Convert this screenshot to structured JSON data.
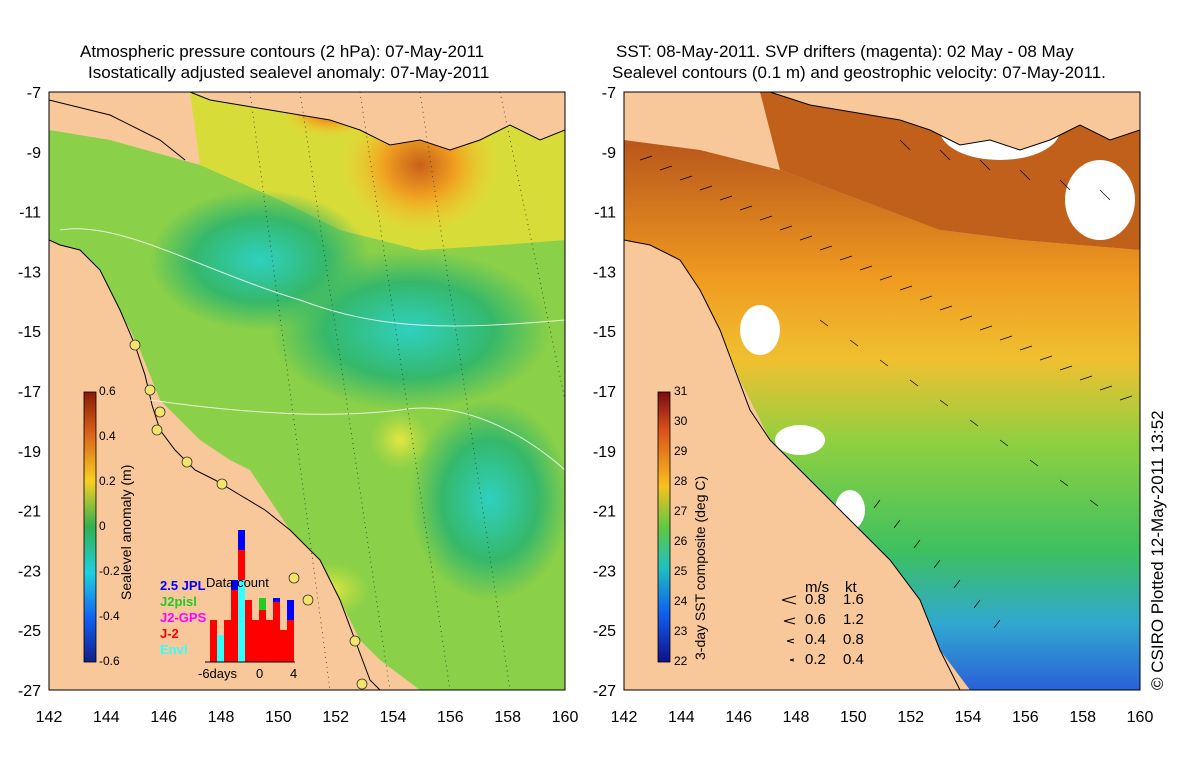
{
  "left_panel": {
    "title_line1": "Atmospheric pressure contours (2 hPa): 07-May-2011",
    "title_line2": "Isostatically adjusted sealevel anomaly: 07-May-2011",
    "colorbar": {
      "label": "Sealevel anomaly (m)",
      "ticks": [
        "0.6",
        "0.4",
        "0.2",
        "0",
        "-0.2",
        "-0.4",
        "-0.6"
      ]
    },
    "legend": {
      "title": "Data count",
      "entries": [
        {
          "label": "2.5 JPL",
          "color": "#0000ff"
        },
        {
          "label": "J2pisl",
          "color": "#22cc22"
        },
        {
          "label": "J2-GPS",
          "color": "#ff00ff"
        },
        {
          "label": "J-2",
          "color": "#ff0000"
        },
        {
          "label": "Envl",
          "color": "#33ffff"
        }
      ],
      "x_label_left": "-6days",
      "x_label_mid": "0",
      "x_label_right": "4"
    }
  },
  "right_panel": {
    "title_line1": "SST: 08-May-2011. SVP drifters (magenta): 02 May - 08 May",
    "title_line2": "Sealevel contours (0.1 m) and geostrophic velocity: 07-May-2011.",
    "colorbar": {
      "label": "3-day SST composite (deg C)",
      "ticks": [
        "31",
        "30",
        "29",
        "28",
        "27",
        "26",
        "25",
        "24",
        "23",
        "22"
      ]
    },
    "speed_legend": {
      "header_ms": "m/s",
      "header_kt": "kt",
      "rows": [
        {
          "ms": "0.8",
          "kt": "1.6"
        },
        {
          "ms": "0.6",
          "kt": "1.2"
        },
        {
          "ms": "0.4",
          "kt": "0.8"
        },
        {
          "ms": "0.2",
          "kt": "0.4"
        }
      ]
    }
  },
  "axes": {
    "x_ticks": [
      "142",
      "144",
      "146",
      "148",
      "150",
      "152",
      "154",
      "156",
      "158",
      "160"
    ],
    "y_ticks": [
      "-7",
      "-9",
      "-11",
      "-13",
      "-15",
      "-17",
      "-19",
      "-21",
      "-23",
      "-25",
      "-27"
    ]
  },
  "credit": "© CSIRO Plotted 12-May-2011 13:52",
  "colors": {
    "land": "#f9c89a",
    "sla_low": "#2aa84e",
    "sla_high": "#f0b020",
    "sst_warm": "#e98a1a",
    "sst_cool": "#2b8ce0"
  }
}
